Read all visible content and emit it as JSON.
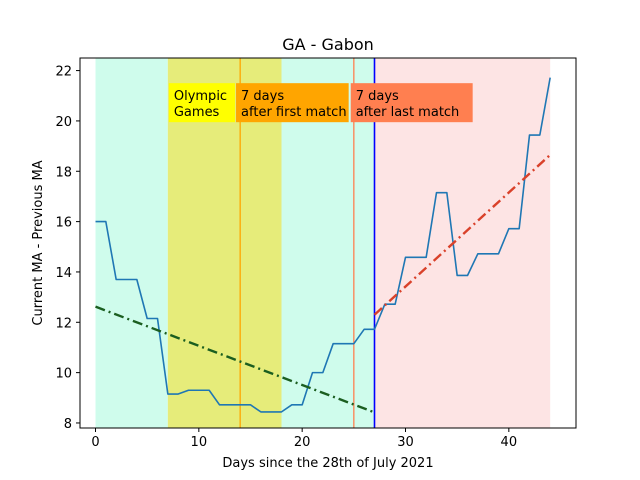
{
  "chart_data": {
    "type": "line",
    "title": "GA - Gabon",
    "xlabel": "Days since the 28th of July 2021",
    "ylabel": "Current MA - Previous MA",
    "xlim": [
      -1.5,
      46.5
    ],
    "ylim": [
      7.8,
      22.5
    ],
    "xticks": [
      0,
      10,
      20,
      30,
      40
    ],
    "yticks": [
      8,
      10,
      12,
      14,
      16,
      18,
      20,
      22
    ],
    "grid": false,
    "series": [
      {
        "color": "#1f77b4",
        "x": [
          0,
          1,
          2,
          3,
          4,
          5,
          6,
          7,
          8,
          9,
          10,
          11,
          12,
          13,
          14,
          15,
          16,
          17,
          18,
          19,
          20,
          21,
          22,
          23,
          24,
          25,
          26,
          27,
          28,
          29,
          30,
          31,
          32,
          33,
          34,
          35,
          36,
          37,
          38,
          39,
          40,
          41,
          42,
          43,
          44
        ],
        "values": [
          16.0,
          16.0,
          13.7,
          13.7,
          13.7,
          12.15,
          12.15,
          9.15,
          9.15,
          9.3,
          9.3,
          9.3,
          8.72,
          8.72,
          8.72,
          8.72,
          8.44,
          8.44,
          8.44,
          8.72,
          8.72,
          10.0,
          10.0,
          11.15,
          11.15,
          11.15,
          11.72,
          11.72,
          12.72,
          12.72,
          14.58,
          14.58,
          14.58,
          17.15,
          17.15,
          13.86,
          13.86,
          14.72,
          14.72,
          14.72,
          15.72,
          15.72,
          19.44,
          19.44,
          21.72
        ]
      }
    ],
    "trend_lines": [
      {
        "color": "#1b5e20",
        "x": [
          0,
          27
        ],
        "values": [
          12.62,
          8.42
        ]
      },
      {
        "color": "#d9412a",
        "x": [
          27,
          44
        ],
        "values": [
          12.3,
          18.65
        ]
      }
    ],
    "regions": [
      {
        "color": "#cffcec",
        "x": [
          0,
          7
        ]
      },
      {
        "color": "#e6ec7a",
        "x": [
          7,
          18
        ]
      },
      {
        "color": "#cffcec",
        "x": [
          18,
          27
        ]
      },
      {
        "color": "#fde4e4",
        "x": [
          27,
          44
        ]
      }
    ],
    "vlines": [
      {
        "color": "#ffa500",
        "x": 14
      },
      {
        "color": "#ff7f50",
        "x": 25
      },
      {
        "color": "#0000ff",
        "x": 27
      }
    ],
    "annotations": [
      {
        "text_lines": [
          "Olympic",
          "Games"
        ],
        "bg": "#ffff00",
        "x": 7.1,
        "y_top": 21.5,
        "y_bottom": 19.95,
        "x_right": 13.5
      },
      {
        "text_lines": [
          "7 days",
          "after first match"
        ],
        "bg": "#ffa500",
        "x": 13.6,
        "y_top": 21.5,
        "y_bottom": 19.95,
        "x_right": 24.5
      },
      {
        "text_lines": [
          "7 days",
          "after last match"
        ],
        "bg": "#ff7f50",
        "x": 24.7,
        "y_top": 21.5,
        "y_bottom": 19.95,
        "x_right": 36.5
      }
    ]
  }
}
